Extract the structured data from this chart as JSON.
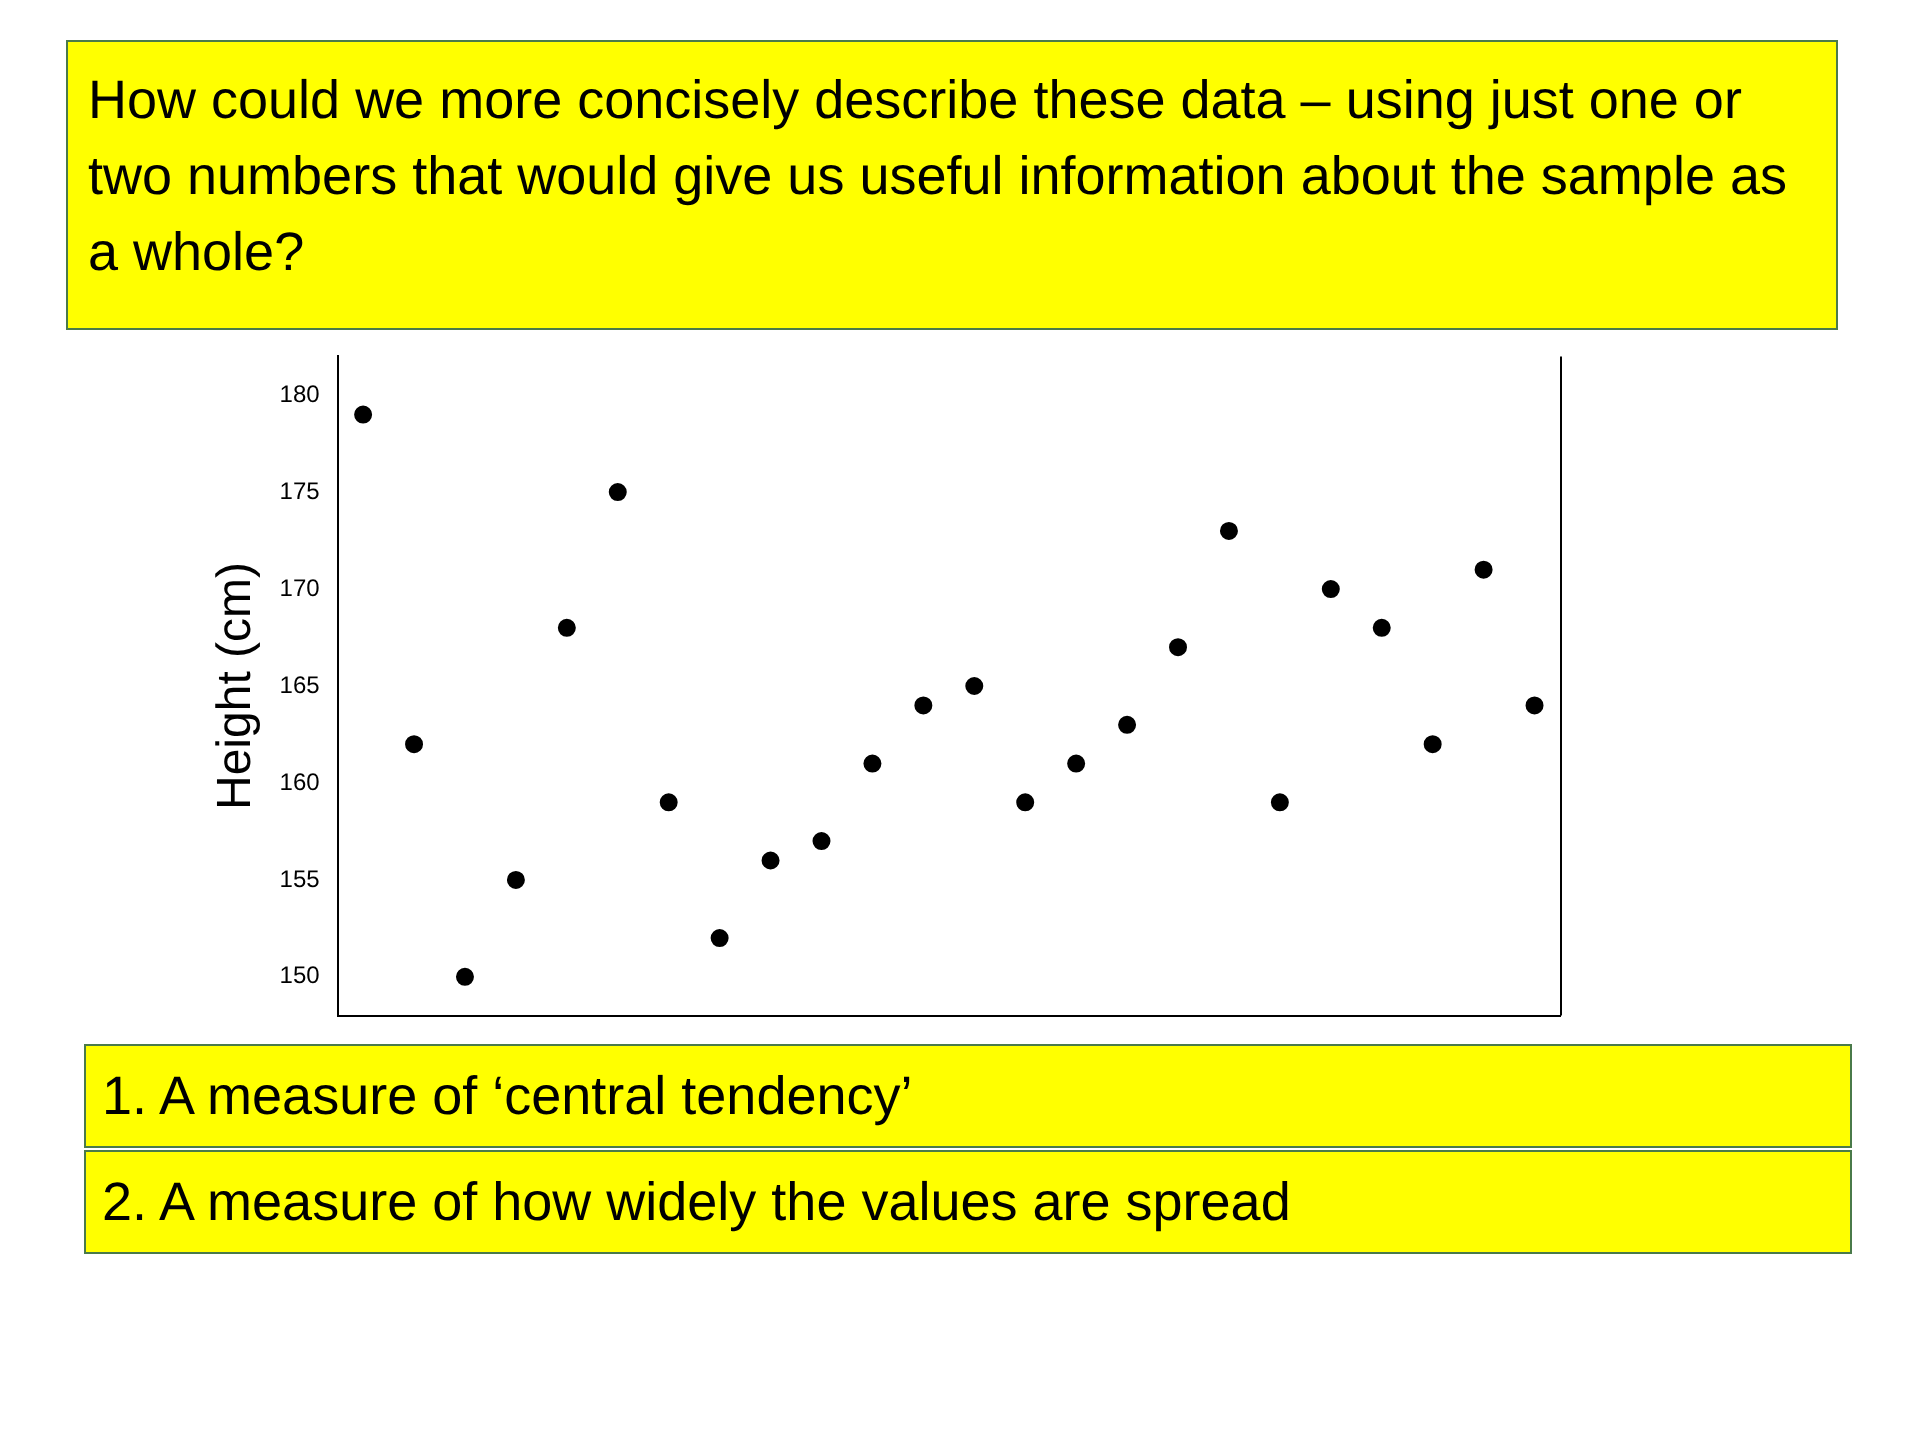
{
  "chart_data": {
    "type": "scatter",
    "title": "How could we more concisely describe these data – using just one or two numbers that would give us useful information about the sample as a whole?",
    "ylabel": "Height (cm)",
    "categories": [
      null,
      null,
      null,
      null,
      null,
      null,
      null,
      null,
      null,
      null,
      null,
      null,
      null,
      null,
      null,
      null,
      null,
      null,
      null,
      null,
      null,
      null,
      null,
      null
    ],
    "series": [
      {
        "color": "#000000",
        "values": [
          179,
          162,
          150,
          155,
          168,
          175,
          159,
          152,
          156,
          157,
          161,
          164,
          165,
          159,
          161,
          163,
          167,
          173,
          159,
          170,
          168,
          162,
          171,
          164
        ]
      }
    ],
    "ylim": [
      148,
      182
    ],
    "yticks": [
      150,
      155,
      160,
      165,
      170,
      175,
      180
    ],
    "grid": false,
    "legend": false,
    "marker": "circle",
    "tick_labels": "y",
    "annotations": [
      "1.  A measure of ‘central tendency’",
      "2. A measure of how widely the values are spread"
    ]
  }
}
